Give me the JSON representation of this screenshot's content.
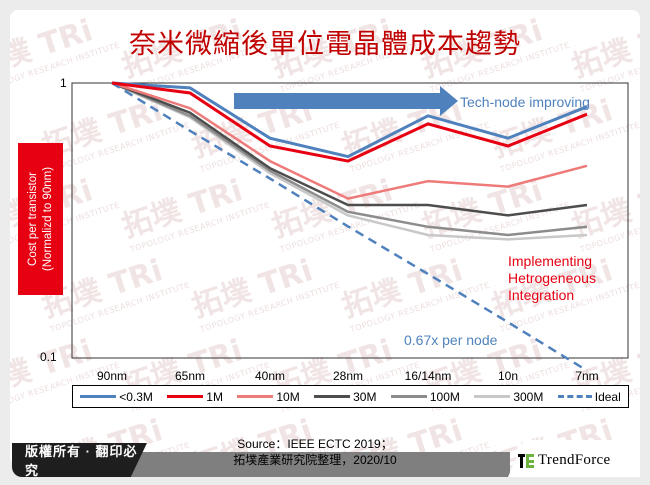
{
  "title": "奈米微縮後單位電晶體成本趨勢",
  "y_axis": {
    "label_line1": "Cost per transistor",
    "label_line2": "(Normalizd to 90nm)",
    "tick_top": "1",
    "tick_bottom": "0.1"
  },
  "x_ticks": [
    "90nm",
    "65nm",
    "40nm",
    "28nm",
    "16/14nm",
    "10n",
    "7nm"
  ],
  "annotations": {
    "arrow_label": "Tech-node improving",
    "hetero_line1": "Implementing",
    "hetero_line2": "Hetrogeneous",
    "hetero_line3": "Integration",
    "ideal_label": "0.67x per node"
  },
  "legend": [
    {
      "label": "<0.3M",
      "color": "#4f81bd",
      "style": "solid"
    },
    {
      "label": "1M",
      "color": "#e60012",
      "style": "solid"
    },
    {
      "label": "10M",
      "color": "#ef7a7a",
      "style": "solid"
    },
    {
      "label": "30M",
      "color": "#4d4d4d",
      "style": "solid"
    },
    {
      "label": "100M",
      "color": "#8c8c8c",
      "style": "solid"
    },
    {
      "label": "300M",
      "color": "#c8c8c8",
      "style": "solid"
    },
    {
      "label": "Ideal",
      "color": "#4f81bd",
      "style": "dashed"
    }
  ],
  "footer": {
    "copyright": "版權所有 · 翻印必究",
    "source_line1": "Source：IEEE ECTC 2019；",
    "source_line2": "拓墣產業研究院整理，2020/10",
    "brand": "TrendForce"
  },
  "chart_data": {
    "type": "line",
    "title": "奈米微縮後單位電晶體成本趨勢",
    "xlabel": "",
    "ylabel": "Cost per transistor (Normalizd to 90nm)",
    "y_scale": "log",
    "ylim": [
      0.1,
      1
    ],
    "categories": [
      "90nm",
      "65nm",
      "40nm",
      "28nm",
      "16/14nm",
      "10n",
      "7nm"
    ],
    "series": [
      {
        "name": "<0.3M",
        "values": [
          1.0,
          0.96,
          0.63,
          0.54,
          0.76,
          0.63,
          0.82
        ]
      },
      {
        "name": "1M",
        "values": [
          1.0,
          0.92,
          0.59,
          0.52,
          0.71,
          0.59,
          0.77
        ]
      },
      {
        "name": "10M",
        "values": [
          1.0,
          0.81,
          0.52,
          0.38,
          0.44,
          0.42,
          0.5
        ]
      },
      {
        "name": "30M",
        "values": [
          1.0,
          0.78,
          0.49,
          0.36,
          0.36,
          0.33,
          0.36
        ]
      },
      {
        "name": "100M",
        "values": [
          1.0,
          0.76,
          0.48,
          0.34,
          0.3,
          0.28,
          0.3
        ]
      },
      {
        "name": "300M",
        "values": [
          1.0,
          0.75,
          0.47,
          0.33,
          0.28,
          0.27,
          0.28
        ]
      },
      {
        "name": "Ideal",
        "values": [
          1.0,
          0.67,
          0.449,
          0.301,
          0.202,
          0.135,
          0.09
        ]
      }
    ],
    "annotations": [
      "Tech-node improving",
      "Implementing Hetrogeneous Integration",
      "0.67x per node"
    ],
    "legend_position": "bottom",
    "grid": false
  }
}
